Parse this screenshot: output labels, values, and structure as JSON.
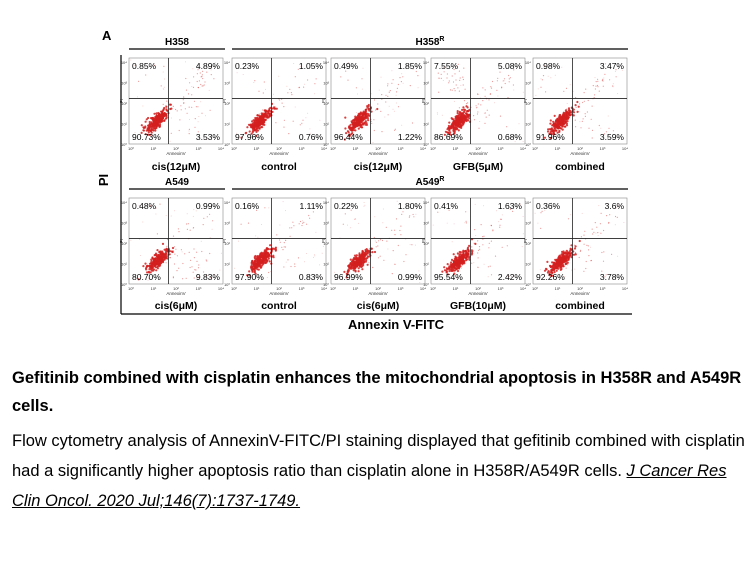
{
  "figure": {
    "panel_label": "A",
    "y_axis_label": "PI",
    "x_axis_label": "Annexin V-FITC",
    "mini_x_label": "AnnexinV",
    "mini_y_label": "PI",
    "mini_x_ticks": [
      "10⁰",
      "10¹",
      "10²",
      "10³",
      "10⁴"
    ],
    "mini_y_ticks": [
      "10⁴",
      "10³",
      "10²",
      "10¹",
      "10⁰"
    ],
    "dot_color": "#d42020",
    "quadrant_line_color": "#222222"
  },
  "chart_data": {
    "type": "scatter",
    "quadrant_order": [
      "upper-left",
      "upper-right",
      "lower-left",
      "lower-right"
    ],
    "rows": [
      {
        "groups": [
          {
            "name": "H358",
            "span": 1
          },
          {
            "name": "H358",
            "superscript": "R",
            "span": 4
          }
        ],
        "panels": [
          {
            "label": "cis(12μM)",
            "quadrants": [
              "0.85%",
              "4.89%",
              "90.73%",
              "3.53%"
            ]
          },
          {
            "label": "control",
            "quadrants": [
              "0.23%",
              "1.05%",
              "97.96%",
              "0.76%"
            ]
          },
          {
            "label": "cis(12μM)",
            "quadrants": [
              "0.49%",
              "1.85%",
              "96.44%",
              "1.22%"
            ]
          },
          {
            "label": "GFB(5μM)",
            "quadrants": [
              "7.55%",
              "5.08%",
              "86.69%",
              "0.68%"
            ]
          },
          {
            "label": "combined",
            "quadrants": [
              "0.98%",
              "3.47%",
              "91.96%",
              "3.59%"
            ]
          }
        ]
      },
      {
        "groups": [
          {
            "name": "A549",
            "span": 1
          },
          {
            "name": "A549",
            "superscript": "R",
            "span": 4
          }
        ],
        "panels": [
          {
            "label": "cis(6μM)",
            "quadrants": [
              "0.48%",
              "0.99%",
              "80.70%",
              "9.83%"
            ]
          },
          {
            "label": "control",
            "quadrants": [
              "0.16%",
              "1.11%",
              "97.90%",
              "0.83%"
            ]
          },
          {
            "label": "cis(6μM)",
            "quadrants": [
              "0.22%",
              "1.80%",
              "96.99%",
              "0.99%"
            ]
          },
          {
            "label": "GFB(10μM)",
            "quadrants": [
              "0.41%",
              "1.63%",
              "95.54%",
              "2.42%"
            ]
          },
          {
            "label": "combined",
            "quadrants": [
              "0.36%",
              "3.6%",
              "92.26%",
              "3.78%"
            ]
          }
        ]
      }
    ]
  },
  "caption": {
    "title": "Gefitinib combined with cisplatin enhances the mitochondrial apoptosis in H358R and A549R cells.",
    "body": "Flow cytometry analysis of AnnexinV-FITC/PI staining displayed that gefitinib combined with cisplatin had a significantly higher apoptosis ratio than cisplatin alone in H358R/A549R cells. ",
    "citation": "J Cancer Res Clin Oncol. 2020 Jul;146(7):1737-1749."
  }
}
